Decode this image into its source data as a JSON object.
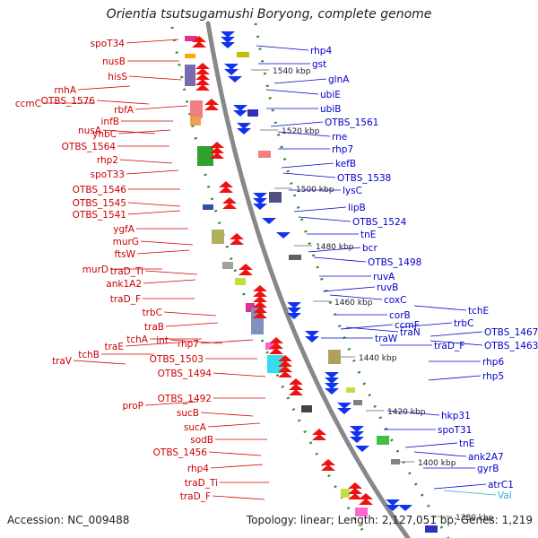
{
  "title": "Orientia tsutsugamushi Boryong, complete genome",
  "footer": {
    "accession": "Accession: NC_009488",
    "summary": "Topology: linear; Length: 2,127,051 bp; Genes: 1,219"
  },
  "colors": {
    "left_labels": "#cc0000",
    "right_labels": "#0000cc",
    "trna_label": "#33aacc",
    "backbone": "#888888",
    "tick_dots": "#2a8a2a"
  },
  "scale_labels": [
    "1540 kbp",
    "1520 kbp",
    "1500 kbp",
    "1480 kbp",
    "1460 kbp",
    "1440 kbp",
    "1420 kbp",
    "1400 kbp",
    "1380 kbp"
  ],
  "left_labels": [
    "spoT34",
    "nusB",
    "hisS",
    "rnhA",
    "ccmC",
    "OTBS_1576",
    "rbfA",
    "infB",
    "nusA",
    "yhbC",
    "OTBS_1564",
    "rhp2",
    "spoT33",
    "OTBS_1546",
    "OTBS_1545",
    "OTBS_1541",
    "ygfA",
    "murG",
    "ftsW",
    "murD",
    "traD_Ti",
    "ank1A2",
    "traD_F",
    "trbC",
    "traB",
    "tchA",
    "int",
    "traE",
    "tchB",
    "traV",
    "rhp7",
    "OTBS_1503",
    "OTBS_1494",
    "proP",
    "OTBS_1492",
    "sucB",
    "sucA",
    "sodB",
    "OTBS_1456",
    "rhp4",
    "traD_Ti",
    "traD_F"
  ],
  "right_labels": [
    "rhp4",
    "gst",
    "glnA",
    "ubiE",
    "ubiB",
    "OTBS_1561",
    "rne",
    "rhp7",
    "kefB",
    "OTBS_1538",
    "lysC",
    "lipB",
    "OTBS_1524",
    "tnE",
    "bcr",
    "OTBS_1498",
    "ruvA",
    "ruvB",
    "coxC",
    "corB",
    "ccmF",
    "traN",
    "traW",
    "trbC",
    "tchE",
    "traD_F",
    "OTBS_1467",
    "OTBS_1463",
    "rhp6",
    "rhp5",
    "hkp31",
    "spoT31",
    "tnE",
    "ank2A7",
    "gyrB",
    "atrC1",
    "Val"
  ]
}
